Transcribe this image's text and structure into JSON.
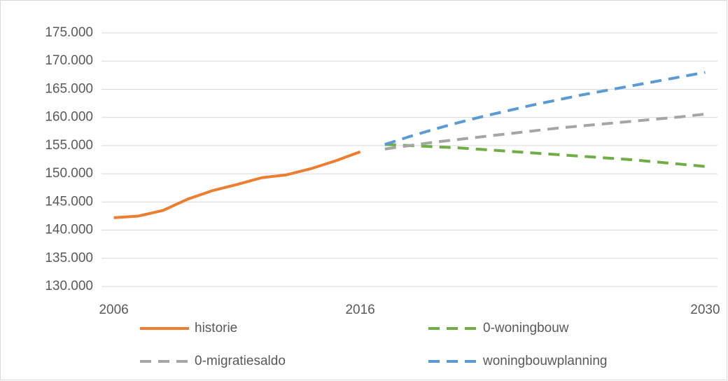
{
  "chart_data": {
    "type": "line",
    "categories": [
      "2006",
      null,
      null,
      null,
      null,
      null,
      null,
      null,
      null,
      null,
      "2016",
      null,
      null,
      null,
      null,
      null,
      null,
      null,
      null,
      null,
      null,
      null,
      null,
      null,
      "2030"
    ],
    "series": [
      {
        "name": "historie",
        "color": "#ed7d31",
        "dashed": false,
        "values": [
          142200,
          142500,
          143500,
          145500,
          147000,
          148100,
          149300,
          149800,
          150900,
          152300,
          153900,
          null,
          null,
          null,
          null,
          null,
          null,
          null,
          null,
          null,
          null,
          null,
          null,
          null,
          null
        ]
      },
      {
        "name": "0-woningbouw",
        "color": "#70ad47",
        "dashed": true,
        "values": [
          null,
          null,
          null,
          null,
          null,
          null,
          null,
          null,
          null,
          null,
          null,
          155200,
          155000,
          154800,
          154600,
          154300,
          154000,
          153700,
          153400,
          153100,
          152800,
          152500,
          152100,
          151700,
          151300
        ]
      },
      {
        "name": "0-migratiesaldo",
        "color": "#a5a5a5",
        "dashed": true,
        "values": [
          null,
          null,
          null,
          null,
          null,
          null,
          null,
          null,
          null,
          null,
          null,
          154400,
          155000,
          155600,
          156100,
          156600,
          157100,
          157600,
          158100,
          158500,
          158900,
          159300,
          159700,
          160100,
          160600
        ]
      },
      {
        "name": "woningbouwplanning",
        "color": "#5b9bd5",
        "dashed": true,
        "values": [
          null,
          null,
          null,
          null,
          null,
          null,
          null,
          null,
          null,
          null,
          null,
          155200,
          156600,
          157900,
          159100,
          160200,
          161200,
          162200,
          163100,
          164000,
          164800,
          165600,
          166400,
          167200,
          168000
        ]
      }
    ],
    "ylim": [
      130000,
      175000
    ],
    "yticks": [
      {
        "value": 130000,
        "label": "130.000"
      },
      {
        "value": 135000,
        "label": "135.000"
      },
      {
        "value": 140000,
        "label": "140.000"
      },
      {
        "value": 145000,
        "label": "145.000"
      },
      {
        "value": 150000,
        "label": "150.000"
      },
      {
        "value": 155000,
        "label": "155.000"
      },
      {
        "value": 160000,
        "label": "160.000"
      },
      {
        "value": 165000,
        "label": "165.000"
      },
      {
        "value": 170000,
        "label": "170.000"
      },
      {
        "value": 175000,
        "label": "175.000"
      }
    ],
    "grid": true,
    "legend": "bottom"
  }
}
